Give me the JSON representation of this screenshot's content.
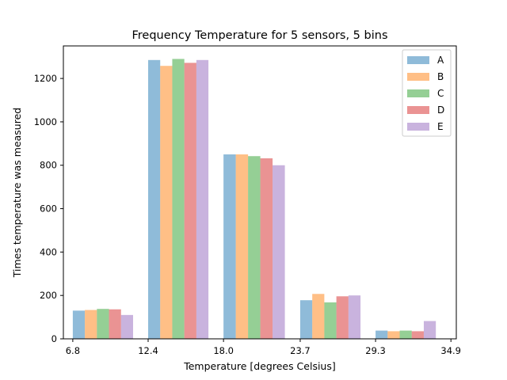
{
  "chart_data": {
    "type": "bar",
    "title": "Frequency Temperature for 5 sensors, 5 bins",
    "xlabel": "Temperature [degrees Celsius]",
    "ylabel": "Times temperature was measured",
    "x_bin_edges": [
      6.8,
      12.4,
      18.0,
      23.7,
      29.3,
      34.9
    ],
    "x_tick_labels": [
      "6.8",
      "12.4",
      "18.0",
      "23.7",
      "29.3",
      "34.9"
    ],
    "xlim": [
      6.1,
      35.3
    ],
    "ylim": [
      0,
      1350
    ],
    "y_ticks": [
      0,
      200,
      400,
      600,
      800,
      1000,
      1200
    ],
    "grid": false,
    "legend_position": "top-right",
    "series": [
      {
        "name": "A",
        "color": "#1f77b4",
        "values": [
          130,
          1285,
          850,
          178,
          38
        ]
      },
      {
        "name": "B",
        "color": "#ff7f0e",
        "values": [
          133,
          1258,
          850,
          207,
          35
        ]
      },
      {
        "name": "C",
        "color": "#2ca02c",
        "values": [
          138,
          1290,
          842,
          168,
          38
        ]
      },
      {
        "name": "D",
        "color": "#d62728",
        "values": [
          136,
          1272,
          832,
          196,
          35
        ]
      },
      {
        "name": "E",
        "color": "#9467bd",
        "values": [
          110,
          1285,
          800,
          200,
          82
        ]
      }
    ]
  }
}
